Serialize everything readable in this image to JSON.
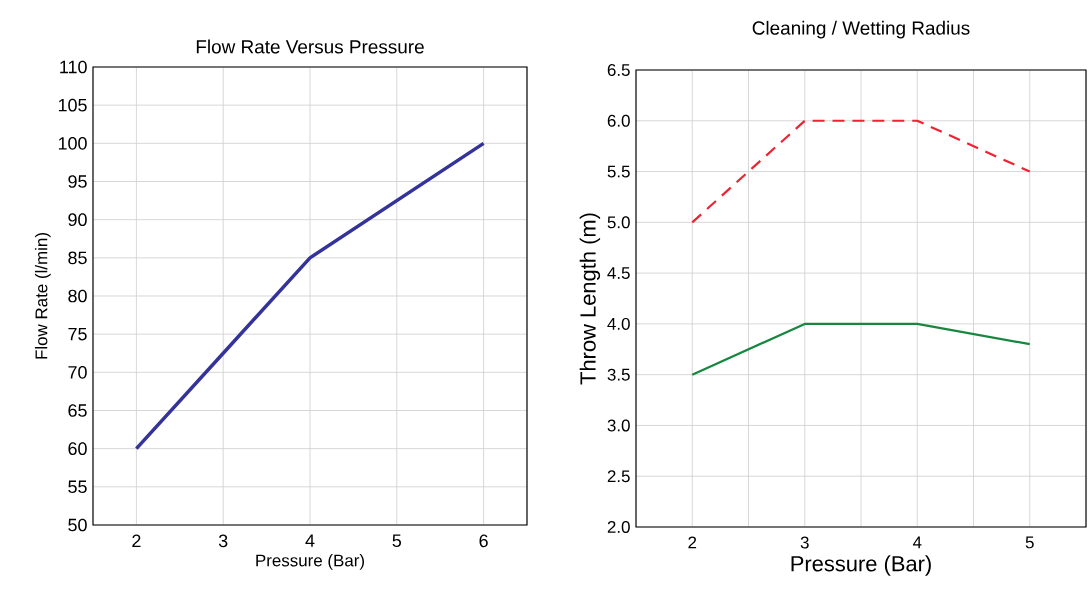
{
  "chart_data": [
    {
      "type": "line",
      "title": "Flow Rate Versus Pressure",
      "xlabel": "Pressure (Bar)",
      "ylabel": "Flow Rate (l/min)",
      "x": [
        2,
        3,
        4,
        5,
        6
      ],
      "series": [
        {
          "color": "#333399",
          "values": [
            60,
            72.5,
            85,
            92.5,
            100
          ]
        }
      ],
      "xlim": [
        1.5,
        6.5
      ],
      "xticks": [
        2,
        3,
        4,
        5,
        6
      ],
      "ylim": [
        50,
        110
      ],
      "yticks": [
        50,
        55,
        60,
        65,
        70,
        75,
        80,
        85,
        90,
        95,
        100,
        105,
        110
      ],
      "grid": true,
      "marker": "none",
      "line_style": "solid"
    },
    {
      "type": "line",
      "title": "Cleaning / Wetting Radius",
      "xlabel": "Pressure (Bar)",
      "ylabel": "Throw Length (m)",
      "x": [
        2,
        3,
        4,
        5
      ],
      "series": [
        {
          "color": "#17873f",
          "values": [
            3.5,
            4.0,
            4.0,
            3.8
          ],
          "line_style": "solid"
        },
        {
          "color": "#ee2233",
          "values": [
            5.0,
            6.0,
            6.0,
            5.5
          ],
          "line_style": "dashed"
        }
      ],
      "xlim": [
        1.5,
        5.5
      ],
      "xticks": [
        2,
        {
          "value": 2.5,
          "label": null
        },
        3,
        {
          "value": 3.5,
          "label": null
        },
        4,
        {
          "value": 4.5,
          "label": null
        },
        5
      ],
      "ylim": [
        2.0,
        6.5
      ],
      "yticks": [
        {
          "value": 2.0,
          "label": "2.0"
        },
        2.5,
        {
          "value": 3.0,
          "label": "3.0"
        },
        3.5,
        {
          "value": 4.0,
          "label": "4.0"
        },
        4.5,
        {
          "value": 5.0,
          "label": "5.0"
        },
        5.5,
        {
          "value": 6.0,
          "label": "6.0"
        },
        6.5
      ],
      "grid": true,
      "marker": "none"
    }
  ]
}
